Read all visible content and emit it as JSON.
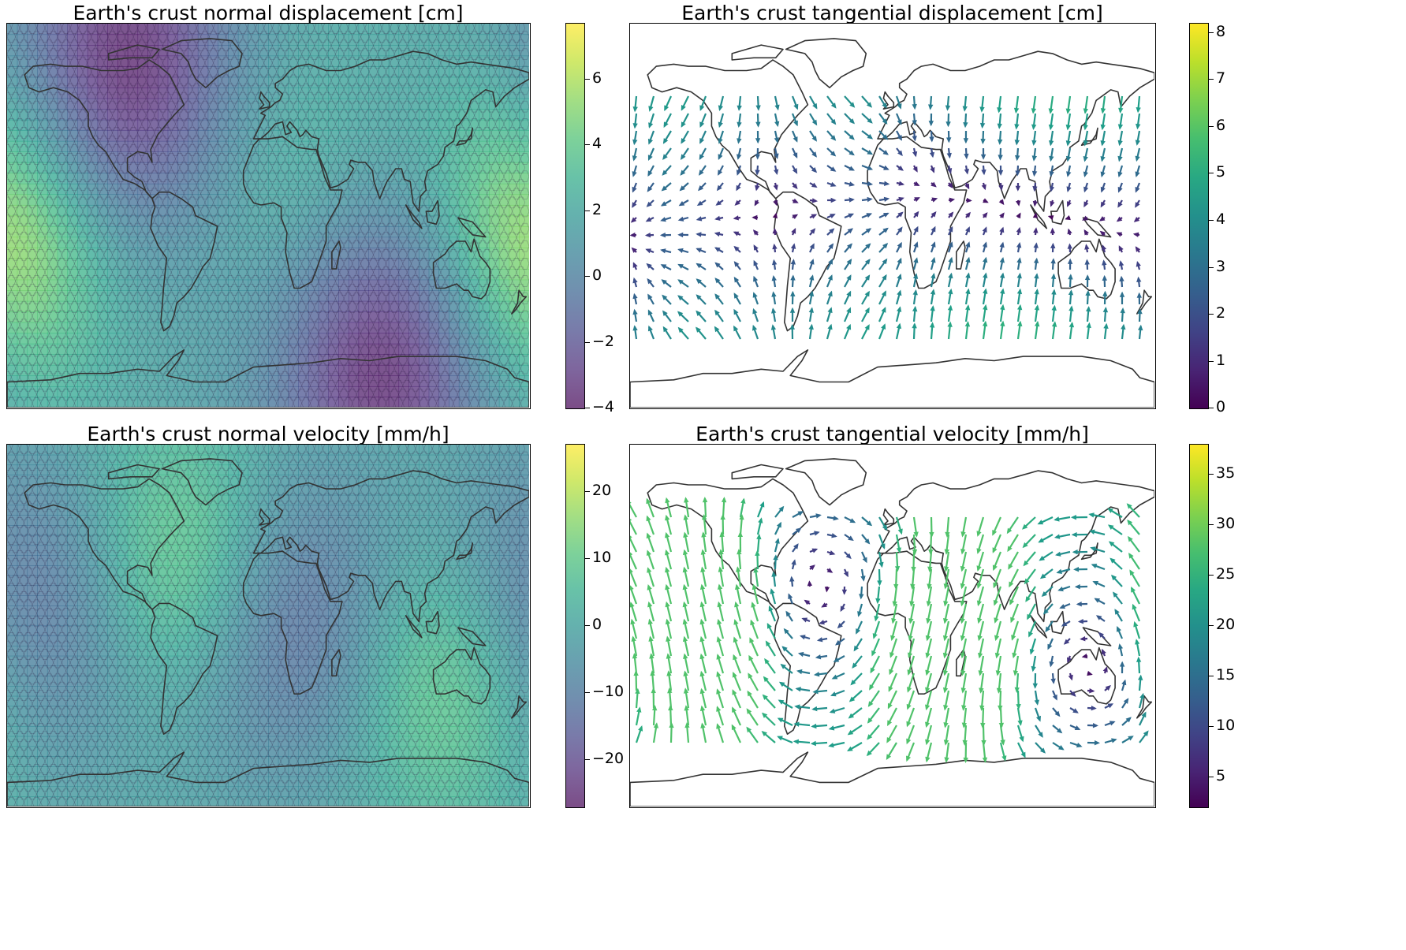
{
  "chart_data": [
    {
      "type": "heatmap",
      "title": "Earth's crust normal displacement [cm]",
      "colormap": "viridis",
      "alpha": 0.7,
      "colorbar": {
        "min": -4,
        "max": 7.7,
        "ticks": [
          -4,
          -2,
          0,
          2,
          4,
          6
        ],
        "tick_labels": [
          "−4",
          "−2",
          "0",
          "2",
          "4",
          "6"
        ]
      },
      "hotspots": [
        {
          "lon": 18,
          "lat": 12,
          "value": 3.4
        },
        {
          "lon": -178,
          "lat": -10,
          "value": 4.3
        },
        {
          "lon": 178,
          "lat": -10,
          "value": 4.3
        }
      ],
      "coldspots": [
        {
          "lon": -100,
          "lat": 70,
          "value": -3.9
        },
        {
          "lon": 80,
          "lat": -70,
          "value": -3.9
        }
      ]
    },
    {
      "type": "quiver",
      "title": "Earth's crust tangential displacement [cm]",
      "colormap": "viridis",
      "colorbar": {
        "min": 0,
        "max": 8.2,
        "ticks": [
          0,
          1,
          2,
          3,
          4,
          5,
          6,
          7,
          8
        ],
        "tick_labels": [
          "0",
          "1",
          "2",
          "3",
          "4",
          "5",
          "6",
          "7",
          "8"
        ]
      },
      "convergence_points": [
        {
          "lon": 18,
          "lat": 12
        },
        {
          "lon": 178,
          "lat": -10
        }
      ]
    },
    {
      "type": "heatmap",
      "title": "Earth's crust normal velocity [mm/h]",
      "colormap": "viridis",
      "alpha": 0.7,
      "colorbar": {
        "min": -27,
        "max": 27,
        "ticks": [
          -20,
          -10,
          0,
          10,
          20
        ],
        "tick_labels": [
          "−20",
          "−10",
          "0",
          "10",
          "20"
        ]
      },
      "hotspots": [
        {
          "lon": -55,
          "lat": 30,
          "value": 17
        },
        {
          "lon": 130,
          "lat": -25,
          "value": 17
        }
      ],
      "coldspots": [
        {
          "lon": 10,
          "lat": 5,
          "value": -17
        },
        {
          "lon": -170,
          "lat": 5,
          "value": -17
        }
      ]
    },
    {
      "type": "quiver",
      "title": "Earth's crust tangential velocity [mm/h]",
      "colormap": "viridis",
      "colorbar": {
        "min": 2,
        "max": 38,
        "ticks": [
          5,
          10,
          15,
          20,
          25,
          30,
          35
        ],
        "tick_labels": [
          "5",
          "10",
          "15",
          "20",
          "25",
          "30",
          "35"
        ]
      },
      "vortex_points": [
        {
          "lon": -50,
          "lat": 20
        },
        {
          "lon": 135,
          "lat": -20
        }
      ]
    }
  ]
}
